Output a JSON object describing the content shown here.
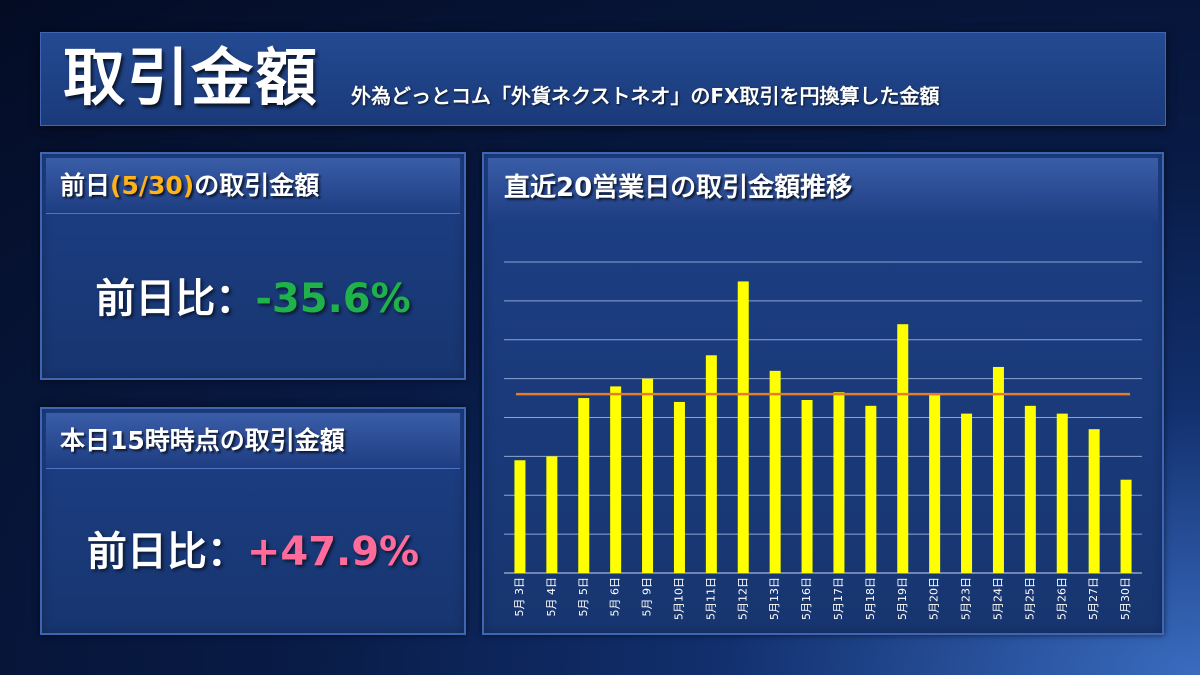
{
  "header": {
    "title": "取引金額",
    "subtitle": "外為どっとコム「外貨ネクストネオ」のFX取引を円換算した金額"
  },
  "prev_day_panel": {
    "title_before": "前日",
    "title_highlight": "(5/30)",
    "title_after": "の取引金額",
    "comparison_label": "前日比：",
    "comparison_value": "-35.6%"
  },
  "today_panel": {
    "title": "本日15時時点の取引金額",
    "comparison_label": "前日比：",
    "comparison_value": "+47.9%"
  },
  "chart_panel": {
    "title": "直近20営業日の取引金額推移"
  },
  "colors": {
    "bar": "#ffff00",
    "average_line": "#e87a2c",
    "negative": "#1fb24a",
    "positive": "#ff6b9a",
    "highlight": "#ffb31a"
  },
  "chart_data": {
    "type": "bar",
    "categories": [
      "5月 3日",
      "5月 4日",
      "5月 5日",
      "5月 6日",
      "5月 9日",
      "5月10日",
      "5月11日",
      "5月12日",
      "5月13日",
      "5月16日",
      "5月17日",
      "5月18日",
      "5月19日",
      "5月20日",
      "5月23日",
      "5月24日",
      "5月25日",
      "5月26日",
      "5月27日",
      "5月30日"
    ],
    "series": [
      {
        "values": [
          2.9,
          3.0,
          4.5,
          4.8,
          5.0,
          4.4,
          5.6,
          7.5,
          5.2,
          4.45,
          4.65,
          4.3,
          6.4,
          4.6,
          4.1,
          5.3,
          4.3,
          4.1,
          3.7,
          2.4
        ]
      }
    ],
    "average_line": 4.6,
    "ylim": [
      0,
      8
    ],
    "y_gridlines": 8,
    "y_ticks_labeled": false,
    "grid": true
  }
}
